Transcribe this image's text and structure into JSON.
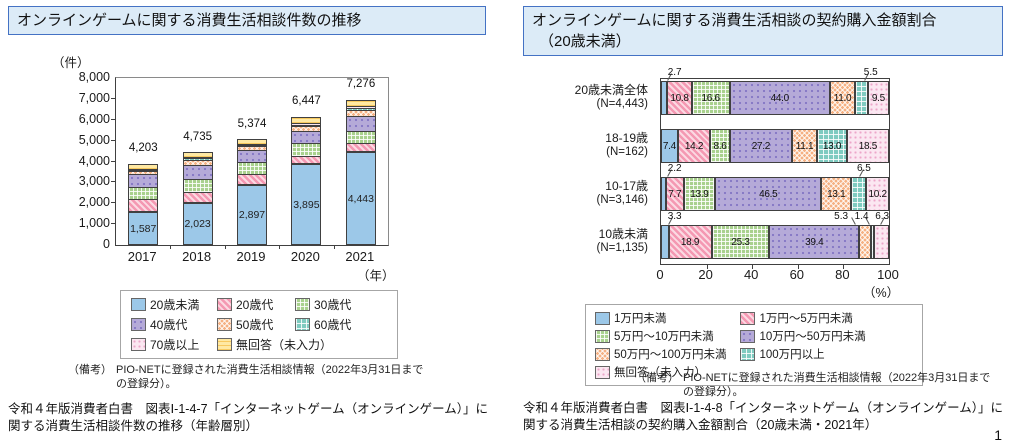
{
  "page_number": "1",
  "left_panel": {
    "title": "オンラインゲームに関する消費生活相談件数の推移",
    "unit_label": "（件）",
    "axis_year_label": "（年）",
    "note_label": "（備考）",
    "note_text": "PIO-NETに登録された消費生活相談情報（2022年3月31日までの登録分）。",
    "caption": "令和４年版消費者白書　図表Ⅰ-1-4-7「インターネットゲーム（オンラインゲーム）」に関する消費生活相談件数の推移（年齢層別）",
    "chart_data": {
      "type": "bar",
      "stacked": true,
      "categories": [
        "2017",
        "2018",
        "2019",
        "2020",
        "2021"
      ],
      "totals_labels": [
        "4,203",
        "4,735",
        "5,374",
        "6,447",
        "7,276"
      ],
      "base_segment_labels": [
        "1,587",
        "2,023",
        "2,897",
        "3,895",
        "4,443"
      ],
      "ylim": [
        0,
        8000
      ],
      "ytick_labels": [
        "8,000",
        "7,000",
        "6,000",
        "5,000",
        "4,000",
        "3,000",
        "2,000",
        "1,000",
        "0"
      ],
      "series": [
        {
          "name": "20歳未満",
          "style": "blue",
          "color": "#9CC8E8",
          "values": [
            1587,
            2023,
            2897,
            3895,
            4443
          ]
        },
        {
          "name": "20歳代",
          "style": "pink",
          "color": "#F498B2",
          "values": [
            640,
            520,
            520,
            390,
            446
          ]
        },
        {
          "name": "30歳代",
          "style": "green",
          "color": "#A9D18E",
          "values": [
            640,
            660,
            600,
            650,
            606
          ]
        },
        {
          "name": "40歳代",
          "style": "purple",
          "color": "#B5AAD8",
          "values": [
            670,
            720,
            620,
            630,
            765
          ]
        },
        {
          "name": "50歳代",
          "style": "orange",
          "color": "#F5B183",
          "values": [
            190,
            270,
            240,
            310,
            350
          ]
        },
        {
          "name": "60歳代",
          "style": "teal",
          "color": "#7FCBC0",
          "values": [
            95,
            130,
            100,
            110,
            159
          ]
        },
        {
          "name": "70歳以上",
          "style": "lavender",
          "color": "#FBE7F1",
          "values": [
            95,
            110,
            110,
            150,
            159
          ]
        },
        {
          "name": "無回答（未入力）",
          "style": "yellow",
          "color": "#FFE9A3",
          "values": [
            286,
            302,
            287,
            312,
            348
          ]
        }
      ]
    }
  },
  "right_panel": {
    "title_line1": "オンラインゲームに関する消費生活相談の契約購入金額割合",
    "title_line2": "（20歳未満）",
    "axis_percent_label": "（%）",
    "note_label": "（備考）",
    "note_text": "PIO-NETに登録された消費生活相談情報（2022年3月31日までの登録分）。",
    "caption": "令和４年版消費者白書　図表Ⅰ-1-4-8「インターネットゲーム（オンラインゲーム）」に関する消費生活相談の契約購入金額割合（20歳未満・2021年）",
    "chart_data": {
      "type": "bar",
      "orientation": "horizontal",
      "stacked": true,
      "unit": "%",
      "xlim": [
        0,
        100
      ],
      "xtick_labels": [
        "0",
        "20",
        "40",
        "60",
        "80",
        "100"
      ],
      "series_names": [
        "1万円未満",
        "1万円～5万円未満",
        "5万円～10万円未満",
        "10万円～50万円未満",
        "50万円～100万円未満",
        "100万円以上",
        "無回答（未入力）"
      ],
      "series_styles": [
        "blue",
        "pink",
        "green",
        "purple",
        "orange",
        "teal",
        "lavender"
      ],
      "rows": [
        {
          "label": "20歳未満全体",
          "n_label": "(N=4,443)",
          "values": [
            "2.7",
            "10.8",
            "16.6",
            "44.0",
            "11.0",
            "5.5",
            "9.5"
          ],
          "callouts": [
            {
              "index": 0,
              "x": 6
            },
            {
              "index": 5,
              "x": 92
            }
          ]
        },
        {
          "label": "18-19歳",
          "n_label": "(N=162)",
          "values": [
            "7.4",
            "14.2",
            "8.6",
            "27.2",
            "11.1",
            "13.0",
            "18.5"
          ],
          "callouts": []
        },
        {
          "label": "10-17歳",
          "n_label": "(N=3,146)",
          "values": [
            "2.2",
            "7.7",
            "13.9",
            "46.5",
            "13.1",
            "6.5",
            "10.2"
          ],
          "callouts": [
            {
              "index": 0,
              "x": 6
            },
            {
              "index": 5,
              "x": 89
            }
          ]
        },
        {
          "label": "10歳未満",
          "n_label": "(N=1,135)",
          "values": [
            "3.3",
            "18.9",
            "25.3",
            "39.4",
            "5.3",
            "1.4",
            "6.3"
          ],
          "callouts": [
            {
              "index": 0,
              "x": 6
            },
            {
              "index": 4,
              "x": 79
            },
            {
              "index": 5,
              "x": 88
            },
            {
              "index": 6,
              "x": 97
            }
          ]
        }
      ]
    }
  }
}
